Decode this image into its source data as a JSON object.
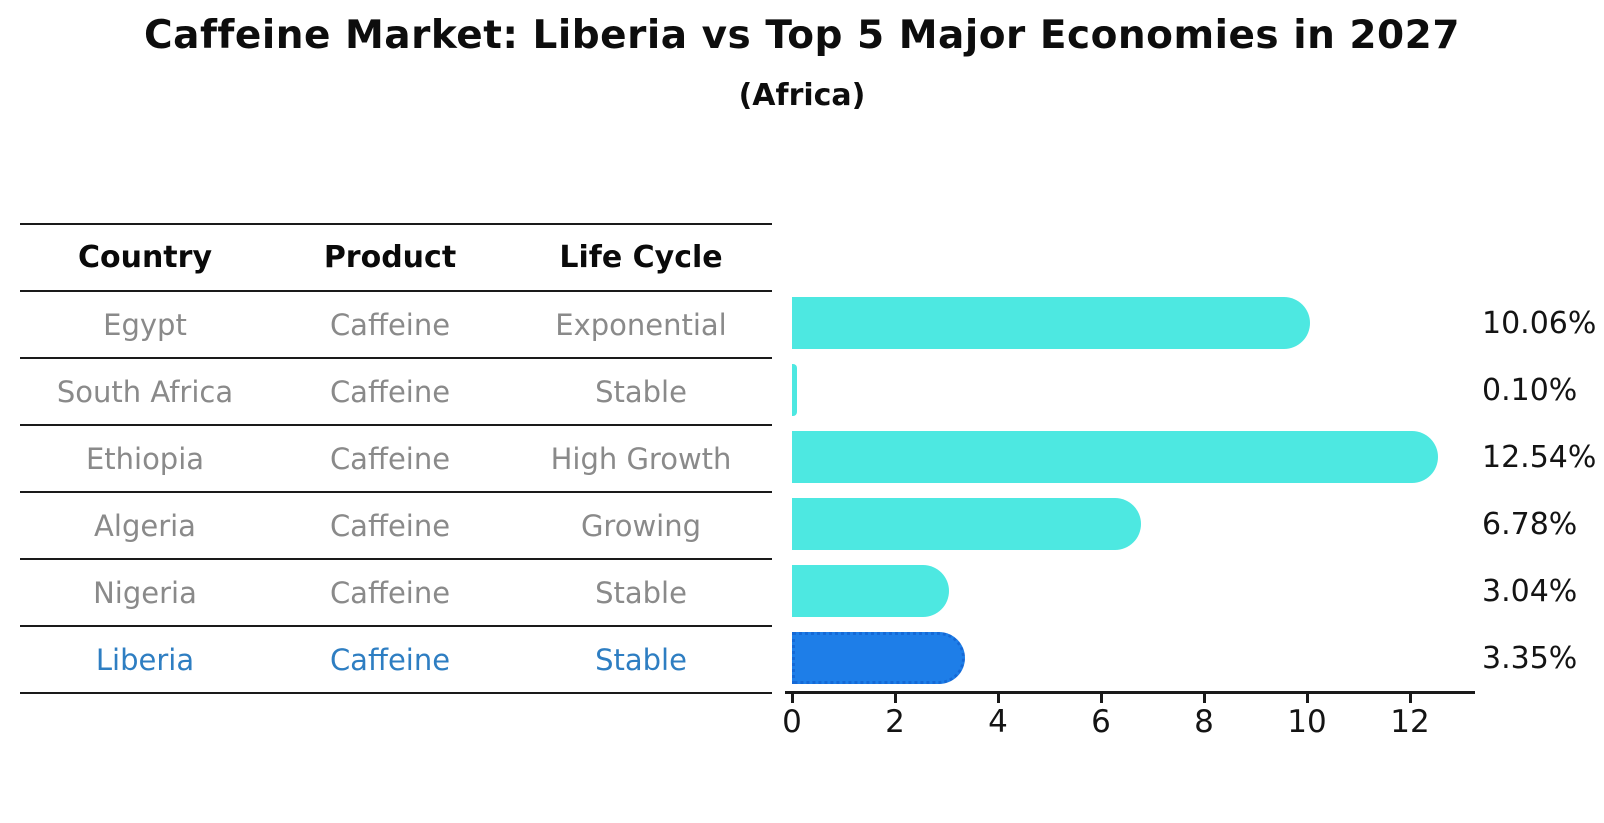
{
  "title": "Caffeine Market: Liberia vs Top 5 Major Economies in 2027",
  "subtitle": "(Africa)",
  "table": {
    "headers": {
      "country": "Country",
      "product": "Product",
      "life_cycle": "Life Cycle"
    },
    "rows": [
      {
        "country": "Egypt",
        "product": "Caffeine",
        "life_cycle": "Exponential",
        "highlight": false
      },
      {
        "country": "South Africa",
        "product": "Caffeine",
        "life_cycle": "Stable",
        "highlight": false
      },
      {
        "country": "Ethiopia",
        "product": "Caffeine",
        "life_cycle": "High Growth",
        "highlight": false
      },
      {
        "country": "Algeria",
        "product": "Caffeine",
        "life_cycle": "Growing",
        "highlight": false
      },
      {
        "country": "Nigeria",
        "product": "Caffeine",
        "life_cycle": "Stable",
        "highlight": false
      },
      {
        "country": "Liberia",
        "product": "Caffeine",
        "life_cycle": "Stable",
        "highlight": true
      }
    ]
  },
  "chart_data": {
    "type": "bar",
    "orientation": "horizontal",
    "title": "Caffeine Market: Liberia vs Top 5 Major Economies in 2027",
    "subtitle": "(Africa)",
    "categories": [
      "Egypt",
      "South Africa",
      "Ethiopia",
      "Algeria",
      "Nigeria",
      "Liberia"
    ],
    "values": [
      10.06,
      0.1,
      12.54,
      6.78,
      3.04,
      3.35
    ],
    "value_labels": [
      "10.06%",
      "0.10%",
      "12.54%",
      "6.78%",
      "3.04%",
      "3.35%"
    ],
    "xlim": [
      0,
      13.25
    ],
    "x_ticks": [
      0,
      2,
      4,
      6,
      8,
      10,
      12
    ],
    "grid": false,
    "legend": false,
    "highlight_index": 5,
    "bar_style": "rounded-right-cap, highlight bar has dotted outline"
  },
  "colors": {
    "bar_default": "#4DE8E1",
    "bar_highlight": "#1E7EE8",
    "highlight_border": "#1569D6",
    "highlight_text": "#2E7EC2",
    "row_text": "#8A8A8A",
    "header_text": "#0A0A0A",
    "axis": "#1A1A1A",
    "background": "#FFFFFF"
  }
}
